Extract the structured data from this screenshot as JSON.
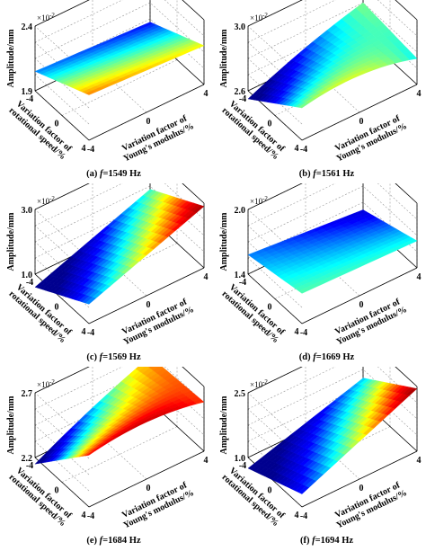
{
  "colormap": [
    "#00008f",
    "#0000ff",
    "#00ffff",
    "#ffff00",
    "#ff0000",
    "#800000"
  ],
  "axis_text": {
    "z_label": "Amplitude/mm",
    "x_label_line1": "Variation factor of",
    "x_label_line2": "rotational speed/%",
    "y_label_line1": "Variation factor of",
    "y_label_line2": "Young's modulus/%",
    "multiplier": "×10",
    "multiplier_exp": "-2"
  },
  "chart_data": [
    {
      "type": "surface",
      "caption_prefix": "(a) ",
      "caption_var": "f",
      "caption_value": "=1549 Hz",
      "xlabel": "Variation factor of rotational speed/%",
      "ylabel": "Variation factor of Young's modulus/%",
      "zlabel": "Amplitude/mm",
      "x_ticks": [
        "-4",
        "0",
        "4"
      ],
      "y_ticks": [
        "-4",
        "0",
        "4"
      ],
      "z_ticks": [
        "1.9",
        "2.4"
      ],
      "zlim": [
        1.9,
        2.4
      ],
      "xlim": [
        -4,
        4
      ],
      "ylim": [
        -4,
        4
      ],
      "corners": {
        "xmin_ymin": 2.25,
        "xmin_ymax": 2.2,
        "xmax_ymin": 2.05,
        "xmax_ymax": 2.0
      },
      "curvature": 0
    },
    {
      "type": "surface",
      "caption_prefix": "(b) ",
      "caption_var": "f",
      "caption_value": "=1561 Hz",
      "xlabel": "Variation factor of rotational speed/%",
      "ylabel": "Variation factor of Young's modulus/%",
      "zlabel": "Amplitude/mm",
      "x_ticks": [
        "-4",
        "0",
        "4"
      ],
      "y_ticks": [
        "-4",
        "0",
        "4"
      ],
      "z_ticks": [
        "2.6",
        "3.0"
      ],
      "zlim": [
        2.6,
        3.0
      ],
      "xlim": [
        -4,
        4
      ],
      "ylim": [
        -4,
        4
      ],
      "corners": {
        "xmin_ymin": 2.8,
        "xmin_ymax": 2.76,
        "xmax_ymin": 2.55,
        "xmax_ymax": 2.8
      },
      "curvature": 0.12
    },
    {
      "type": "surface",
      "caption_prefix": "(c) ",
      "caption_var": "f",
      "caption_value": "=1569 Hz",
      "xlabel": "Variation factor of rotational speed/%",
      "ylabel": "Variation factor of Young's modulus/%",
      "zlabel": "Amplitude/mm",
      "x_ticks": [
        "-4",
        "0",
        "4"
      ],
      "y_ticks": [
        "-4",
        "0",
        "4"
      ],
      "z_ticks": [
        "1.0",
        "3.0"
      ],
      "zlim": [
        1.0,
        3.0
      ],
      "xlim": [
        -4,
        4
      ],
      "ylim": [
        -4,
        4
      ],
      "corners": {
        "xmin_ymin": 1.6,
        "xmin_ymax": 2.9,
        "xmax_ymin": 0.6,
        "xmax_ymax": 1.9
      },
      "curvature": 0
    },
    {
      "type": "surface",
      "caption_prefix": "(d) ",
      "caption_var": "f",
      "caption_value": "=1669 Hz",
      "xlabel": "Variation factor of rotational speed/%",
      "ylabel": "Variation factor of Young's modulus/%",
      "zlabel": "Amplitude/mm",
      "x_ticks": [
        "-4",
        "0",
        "4"
      ],
      "y_ticks": [
        "-4",
        "0",
        "4"
      ],
      "z_ticks": [
        "1.4",
        "2.0"
      ],
      "zlim": [
        1.4,
        2.0
      ],
      "xlim": [
        -4,
        4
      ],
      "ylim": [
        -4,
        4
      ],
      "corners": {
        "xmin_ymin": 1.68,
        "xmin_ymax": 1.65,
        "xmax_ymin": 1.58,
        "xmax_ymax": 1.48
      },
      "curvature": 0
    },
    {
      "type": "surface",
      "caption_prefix": "(e) ",
      "caption_var": "f",
      "caption_value": "=1684 Hz",
      "xlabel": "Variation factor of rotational speed/%",
      "ylabel": "Variation factor of Young's modulus/%",
      "zlabel": "Amplitude/mm",
      "x_ticks": [
        "-4",
        "0",
        "4"
      ],
      "y_ticks": [
        "-4",
        "0",
        "4"
      ],
      "z_ticks": [
        "2.2",
        "2.7"
      ],
      "zlim": [
        2.2,
        2.7
      ],
      "xlim": [
        -4,
        4
      ],
      "ylim": [
        -4,
        4
      ],
      "corners": {
        "xmin_ymin": 2.6,
        "xmin_ymax": 2.58,
        "xmax_ymin": 2.15,
        "xmax_ymax": 2.55
      },
      "curvature": 0.1
    },
    {
      "type": "surface",
      "caption_prefix": "(f) ",
      "caption_var": "f",
      "caption_value": "=1694 Hz",
      "xlabel": "Variation factor of rotational speed/%",
      "ylabel": "Variation factor of Young's modulus/%",
      "zlabel": "Amplitude/mm",
      "x_ticks": [
        "-4",
        "0",
        "4"
      ],
      "y_ticks": [
        "-4",
        "0",
        "4"
      ],
      "z_ticks": [
        "1.0",
        "2.5"
      ],
      "zlim": [
        1.0,
        2.5
      ],
      "xlim": [
        -4,
        4
      ],
      "ylim": [
        -4,
        4
      ],
      "corners": {
        "xmin_ymin": 1.3,
        "xmin_ymax": 2.45,
        "xmax_ymin": 0.75,
        "xmax_ymax": 1.55
      },
      "curvature": 0
    }
  ]
}
